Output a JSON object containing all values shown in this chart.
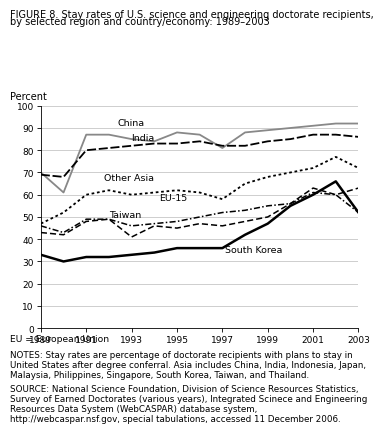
{
  "title_line1": "FIGURE 8. Stay rates of U.S. science and engineering doctorate recipients,",
  "title_line2": "by selected region and country/economy: 1989–2003",
  "ylabel": "Percent",
  "xlabel_note": "EU = European Union",
  "notes_line1": "NOTES: Stay rates are percentage of doctorate recipients with plans to stay in",
  "notes_line2": "United States after degree conferral. Asia includes China, India, Indonesia, Japan,",
  "notes_line3": "Malaysia, Philippines, Singapore, South Korea, Taiwan, and Thailand.",
  "source_line1": "SOURCE: National Science Foundation, Division of Science Resources Statistics,",
  "source_line2": "Survey of Earned Doctorates (various years), Integrated Scinece and Engineering",
  "source_line3": "Resources Data System (WebCASPAR) database system,",
  "source_line4": "http://webcaspar.nsf.gov, special tabulations, accessed 11 December 2006.",
  "years": [
    1989,
    1990,
    1991,
    1992,
    1993,
    1994,
    1995,
    1996,
    1997,
    1998,
    1999,
    2000,
    2001,
    2002,
    2003
  ],
  "china": [
    70,
    61,
    87,
    87,
    85,
    84,
    88,
    87,
    81,
    88,
    89,
    90,
    91,
    92,
    92
  ],
  "india": [
    69,
    68,
    80,
    81,
    82,
    83,
    83,
    84,
    82,
    82,
    84,
    85,
    87,
    87,
    86
  ],
  "other_asia": [
    47,
    52,
    60,
    62,
    60,
    61,
    62,
    61,
    58,
    65,
    68,
    70,
    72,
    77,
    72
  ],
  "eu15": [
    46,
    43,
    49,
    49,
    46,
    47,
    48,
    50,
    52,
    53,
    55,
    56,
    61,
    60,
    52
  ],
  "taiwan": [
    43,
    42,
    48,
    49,
    41,
    46,
    45,
    47,
    46,
    48,
    50,
    56,
    63,
    60,
    63
  ],
  "south_korea": [
    33,
    30,
    32,
    32,
    33,
    34,
    36,
    36,
    36,
    42,
    47,
    55,
    60,
    66,
    52
  ],
  "ylim": [
    0,
    100
  ],
  "yticks": [
    0,
    10,
    20,
    30,
    40,
    50,
    60,
    70,
    80,
    90,
    100
  ],
  "xticks": [
    1989,
    1991,
    1993,
    1995,
    1997,
    1999,
    2001,
    2003
  ],
  "bg": "#ffffff",
  "grid_color": "#bbbbbb"
}
